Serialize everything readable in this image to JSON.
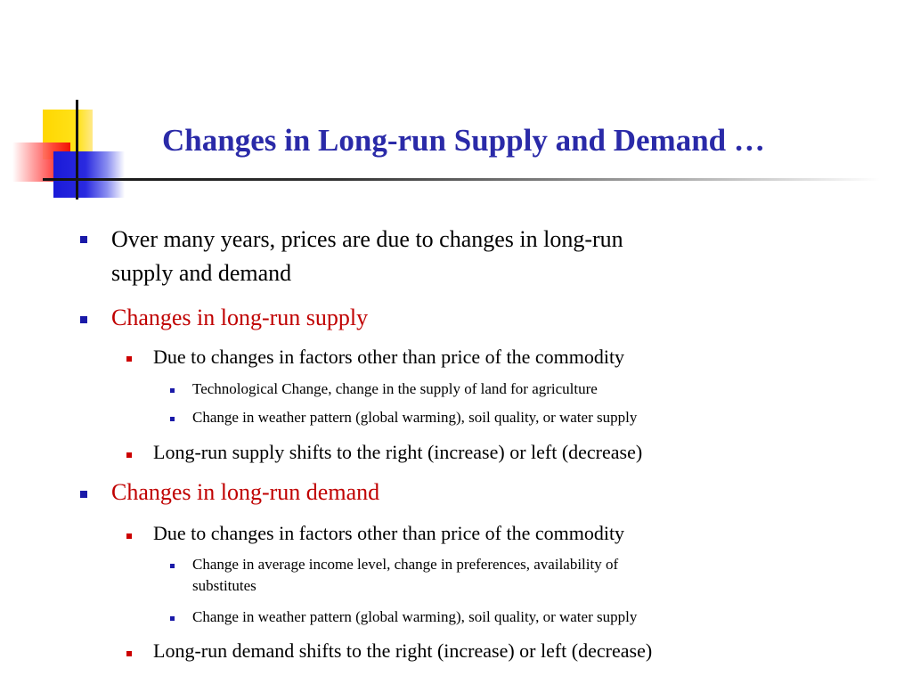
{
  "slide": {
    "title": "Changes in Long-run Supply and Demand …"
  },
  "bullets": [
    {
      "level": 1,
      "lines": [
        "Over many years, prices are due to changes in long-run",
        "supply and demand"
      ],
      "accent": false
    },
    {
      "level": 1,
      "lines": [
        "Changes in long-run supply"
      ],
      "accent": true
    },
    {
      "level": 2,
      "lines": [
        "Due to changes in factors other than price of the commodity"
      ]
    },
    {
      "level": 3,
      "lines": [
        "Technological Change, change in the supply of land for agriculture"
      ]
    },
    {
      "level": 3,
      "lines": [
        "Change in weather pattern (global warming), soil quality, or water supply"
      ]
    },
    {
      "level": 2,
      "lines": [
        "Long-run supply shifts to the right (increase) or left (decrease)"
      ]
    },
    {
      "level": 1,
      "lines": [
        "Changes in long-run demand"
      ],
      "accent": true
    },
    {
      "level": 2,
      "lines": [
        "Due to changes in factors other than price of the commodity"
      ]
    },
    {
      "level": 3,
      "lines": [
        "Change in average income level, change in preferences, availability of",
        "substitutes"
      ]
    },
    {
      "level": 3,
      "lines": [
        "Change in weather pattern (global warming), soil quality, or water supply"
      ]
    },
    {
      "level": 2,
      "lines": [
        "Long-run demand shifts to the right (increase) or left (decrease)"
      ]
    }
  ],
  "colors": {
    "title": "#2a2aa8",
    "accent_text": "#c00000",
    "level1_bullet": "#1a1aa8",
    "level2_bullet": "#cc0000",
    "level3_bullet": "#1a1aa8"
  }
}
